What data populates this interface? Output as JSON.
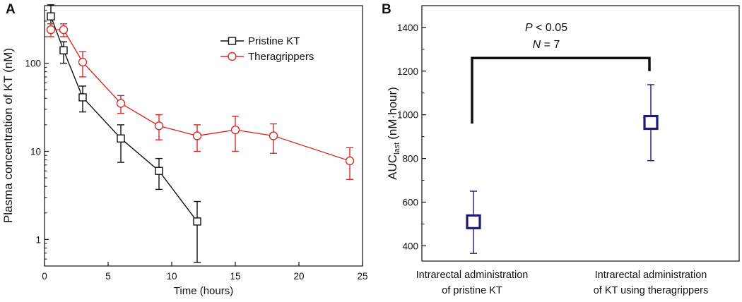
{
  "chart_data": [
    {
      "panel_label": "A",
      "type": "line",
      "xlabel": "Time (hours)",
      "ylabel": "Plasma concentration of KT (nM)",
      "xlim": [
        0,
        25
      ],
      "ylim": [
        0.5,
        450
      ],
      "yscale": "log",
      "x_ticks": [
        0,
        5,
        10,
        15,
        20,
        25
      ],
      "y_ticks": [
        1,
        10,
        100
      ],
      "y_tick_labels": [
        "1",
        "10",
        "100"
      ],
      "legend_position": "top-right",
      "series": [
        {
          "name": "Pristine KT",
          "color": "#111111",
          "marker": "square",
          "x": [
            0.5,
            1.5,
            3,
            6,
            9,
            12
          ],
          "y": [
            340,
            140,
            41,
            14,
            6,
            1.6
          ],
          "err_low": [
            280,
            100,
            28,
            7.5,
            3.7,
            0.55
          ],
          "err_high": [
            460,
            175,
            55,
            20,
            8.3,
            2.7
          ]
        },
        {
          "name": "Theragrippers",
          "color": "#d62b2b",
          "marker": "circle",
          "x": [
            0.5,
            1.5,
            3,
            6,
            9,
            12,
            15,
            18,
            24
          ],
          "y": [
            240,
            240,
            103,
            35,
            19.5,
            15,
            17.5,
            15,
            7.8
          ],
          "err_low": [
            200,
            200,
            70,
            27,
            13.5,
            10,
            10,
            9.5,
            4.8
          ],
          "err_high": [
            280,
            280,
            135,
            43,
            26,
            20,
            25,
            20.5,
            11
          ]
        }
      ]
    },
    {
      "panel_label": "B",
      "type": "scatter",
      "ylabel_main": "AUC",
      "ylabel_sub": "last",
      "ylabel_unit": "(nM·hour)",
      "ylim": [
        330,
        1500
      ],
      "y_ticks": [
        400,
        600,
        800,
        1000,
        1200,
        1400
      ],
      "categories": [
        [
          "Intrarectal administration",
          "of pristine KT"
        ],
        [
          "Intrarectal administration",
          "of KT using theragrippers"
        ]
      ],
      "values": [
        510,
        965
      ],
      "err_low": [
        365,
        790
      ],
      "err_high": [
        650,
        1138
      ],
      "color": "#1f1a7a",
      "bracket_y": 1260,
      "bracket_left_drop": 960,
      "bracket_right_drop": 1200,
      "annotation_p_symbol": "P",
      "annotation_p_rest": " < 0.05",
      "annotation_n_symbol": "N",
      "annotation_n_rest": " = 7"
    }
  ]
}
